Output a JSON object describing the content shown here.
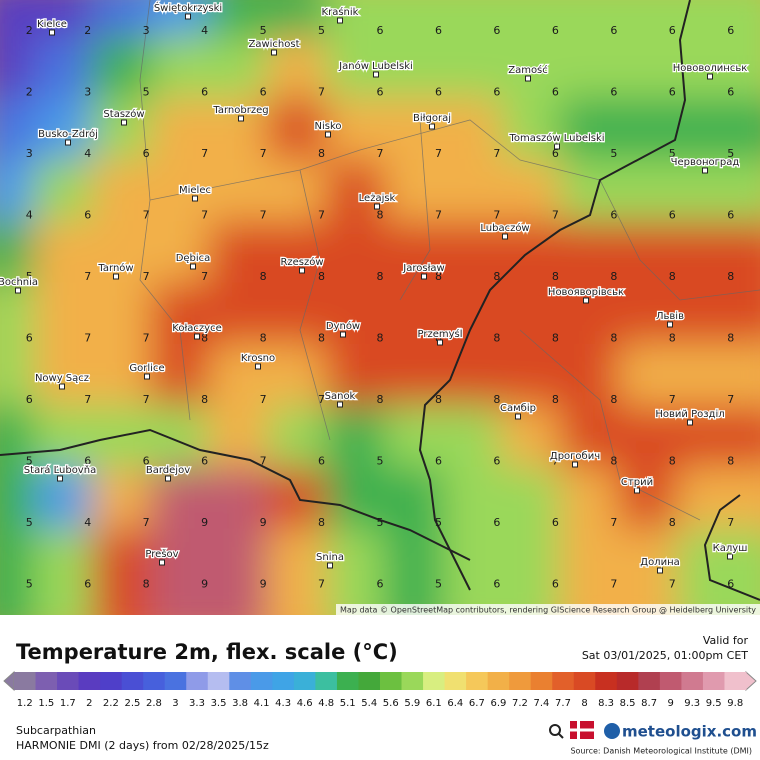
{
  "map": {
    "cities": [
      "Kielce",
      "Świętokrzyski",
      "Kraśnik",
      "Zawichost",
      "Janów Lubelski",
      "Zamość",
      "Нововолинськ",
      "Tarnobrzeg",
      "Staszów",
      "Nisko",
      "Biłgoraj",
      "Tomaszów Lubelski",
      "Busko-Zdrój",
      "Червоноград",
      "Mielec",
      "Leżajsk",
      "Lubaczów",
      "Dębica",
      "Rzeszów",
      "Tarnów",
      "Jarosław",
      "Bochnia",
      "Новояворівськ",
      "Львів",
      "Kołaczyce",
      "Dynów",
      "Przemyśl",
      "Krosno",
      "Gorlice",
      "Nowy Sącz",
      "Sanok",
      "Самбір",
      "Новий Розділ",
      "Stará Ľubovňa",
      "Bardejov",
      "Дрогобич",
      "Стрий",
      "Prešov",
      "Snina",
      "Калуш",
      "Долина"
    ],
    "grid": [
      [
        2,
        2,
        3,
        4,
        5,
        5,
        6,
        6,
        6,
        6,
        6,
        6,
        6
      ],
      [
        2,
        3,
        5,
        6,
        6,
        7,
        6,
        6,
        6,
        6,
        6,
        6,
        6
      ],
      [
        3,
        4,
        6,
        7,
        7,
        8,
        7,
        7,
        7,
        6,
        5,
        5,
        5
      ],
      [
        4,
        6,
        7,
        7,
        7,
        7,
        8,
        7,
        7,
        7,
        6,
        6,
        6
      ],
      [
        5,
        7,
        7,
        7,
        8,
        8,
        8,
        8,
        8,
        8,
        8,
        8,
        8
      ],
      [
        6,
        7,
        7,
        8,
        8,
        8,
        8,
        8,
        8,
        8,
        8,
        8,
        8
      ],
      [
        6,
        7,
        7,
        8,
        7,
        7,
        8,
        8,
        8,
        8,
        8,
        7,
        7
      ],
      [
        5,
        6,
        6,
        6,
        7,
        6,
        5,
        6,
        6,
        7,
        8,
        8,
        8
      ],
      [
        5,
        4,
        7,
        9,
        9,
        8,
        5,
        5,
        6,
        6,
        7,
        8,
        7
      ],
      [
        5,
        6,
        8,
        9,
        9,
        7,
        6,
        5,
        6,
        6,
        7,
        7,
        6
      ]
    ],
    "attribution": "Map data © OpenStreetMap contributors, rendering GIScience Research Group @ Heidelberg University"
  },
  "footer": {
    "title": "Temperature 2m, flex. scale (°C)",
    "valid_label": "Valid for",
    "valid_time": "Sat 03/01/2025, 01:00pm CET",
    "legend_ticks": [
      1.2,
      1.5,
      1.7,
      2,
      2.2,
      2.5,
      2.8,
      3,
      3.3,
      3.5,
      3.8,
      4.1,
      4.3,
      4.6,
      4.8,
      5.1,
      5.4,
      5.6,
      5.9,
      6.1,
      6.4,
      6.7,
      6.9,
      7.2,
      7.4,
      7.7,
      8,
      8.3,
      8.5,
      8.7,
      9,
      9.3,
      9.5,
      9.8
    ],
    "legend_colors": [
      "#8a7aa0",
      "#7d5fb0",
      "#6a4bb8",
      "#5a3cc0",
      "#4f3fc9",
      "#4a4fd4",
      "#4760dc",
      "#4a72e0",
      "#8f9be8",
      "#b5bdf0",
      "#5f8fe6",
      "#4a9ae8",
      "#3fa4e6",
      "#3ab0d8",
      "#3cbfa0",
      "#3cb050",
      "#44a83a",
      "#6cc040",
      "#9ad85a",
      "#d8ee80",
      "#f0e070",
      "#f5c85a",
      "#f2b048",
      "#ef9a3c",
      "#ea8030",
      "#e2602a",
      "#d94a24",
      "#c83020",
      "#b82a2a",
      "#b04050",
      "#c05a70",
      "#d07a90",
      "#e09aae",
      "#f0c0cc"
    ],
    "region": "Subcarpathian",
    "model": "HARMONIE DMI (2 days) from 02/28/2025/15z",
    "brand": "meteologix.com",
    "source": "Source: Danish Meteorological Institute (DMI)"
  }
}
